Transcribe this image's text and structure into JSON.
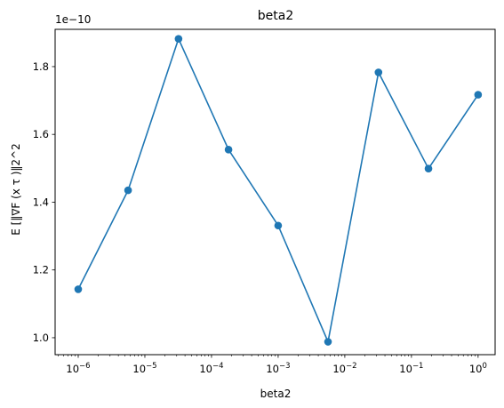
{
  "chart_data": {
    "type": "line",
    "title": "beta2",
    "xlabel": "beta2",
    "ylabel": "E [‖∇F (x τ )‖2^2",
    "xscale": "log",
    "xlim": [
      4.5e-07,
      1.8
    ],
    "ylim": [
      9.5e-11,
      1.91e-10
    ],
    "y_offset_label": "1e−10",
    "x_ticks": [
      {
        "value": 1e-06,
        "base": "10",
        "exp": "−6"
      },
      {
        "value": 1e-05,
        "base": "10",
        "exp": "−5"
      },
      {
        "value": 0.0001,
        "base": "10",
        "exp": "−4"
      },
      {
        "value": 0.001,
        "base": "10",
        "exp": "−3"
      },
      {
        "value": 0.01,
        "base": "10",
        "exp": "−2"
      },
      {
        "value": 0.1,
        "base": "10",
        "exp": "−1"
      },
      {
        "value": 1,
        "base": "10",
        "exp": "0"
      }
    ],
    "y_ticks": [
      {
        "value": 1e-10,
        "label": "1.0"
      },
      {
        "value": 1.2e-10,
        "label": "1.2"
      },
      {
        "value": 1.4e-10,
        "label": "1.4"
      },
      {
        "value": 1.6e-10,
        "label": "1.6"
      },
      {
        "value": 1.8e-10,
        "label": "1.8"
      }
    ],
    "grid": false,
    "color": "#1f77b4",
    "series": [
      {
        "x": [
          1e-06,
          5.6e-06,
          3.2e-05,
          0.00018,
          0.001,
          0.0056,
          0.032,
          0.18,
          1
        ],
        "y": [
          1.143e-10,
          1.435e-10,
          1.882e-10,
          1.555e-10,
          1.331e-10,
          9.88e-11,
          1.783e-10,
          1.499e-10,
          1.717e-10
        ]
      }
    ]
  }
}
